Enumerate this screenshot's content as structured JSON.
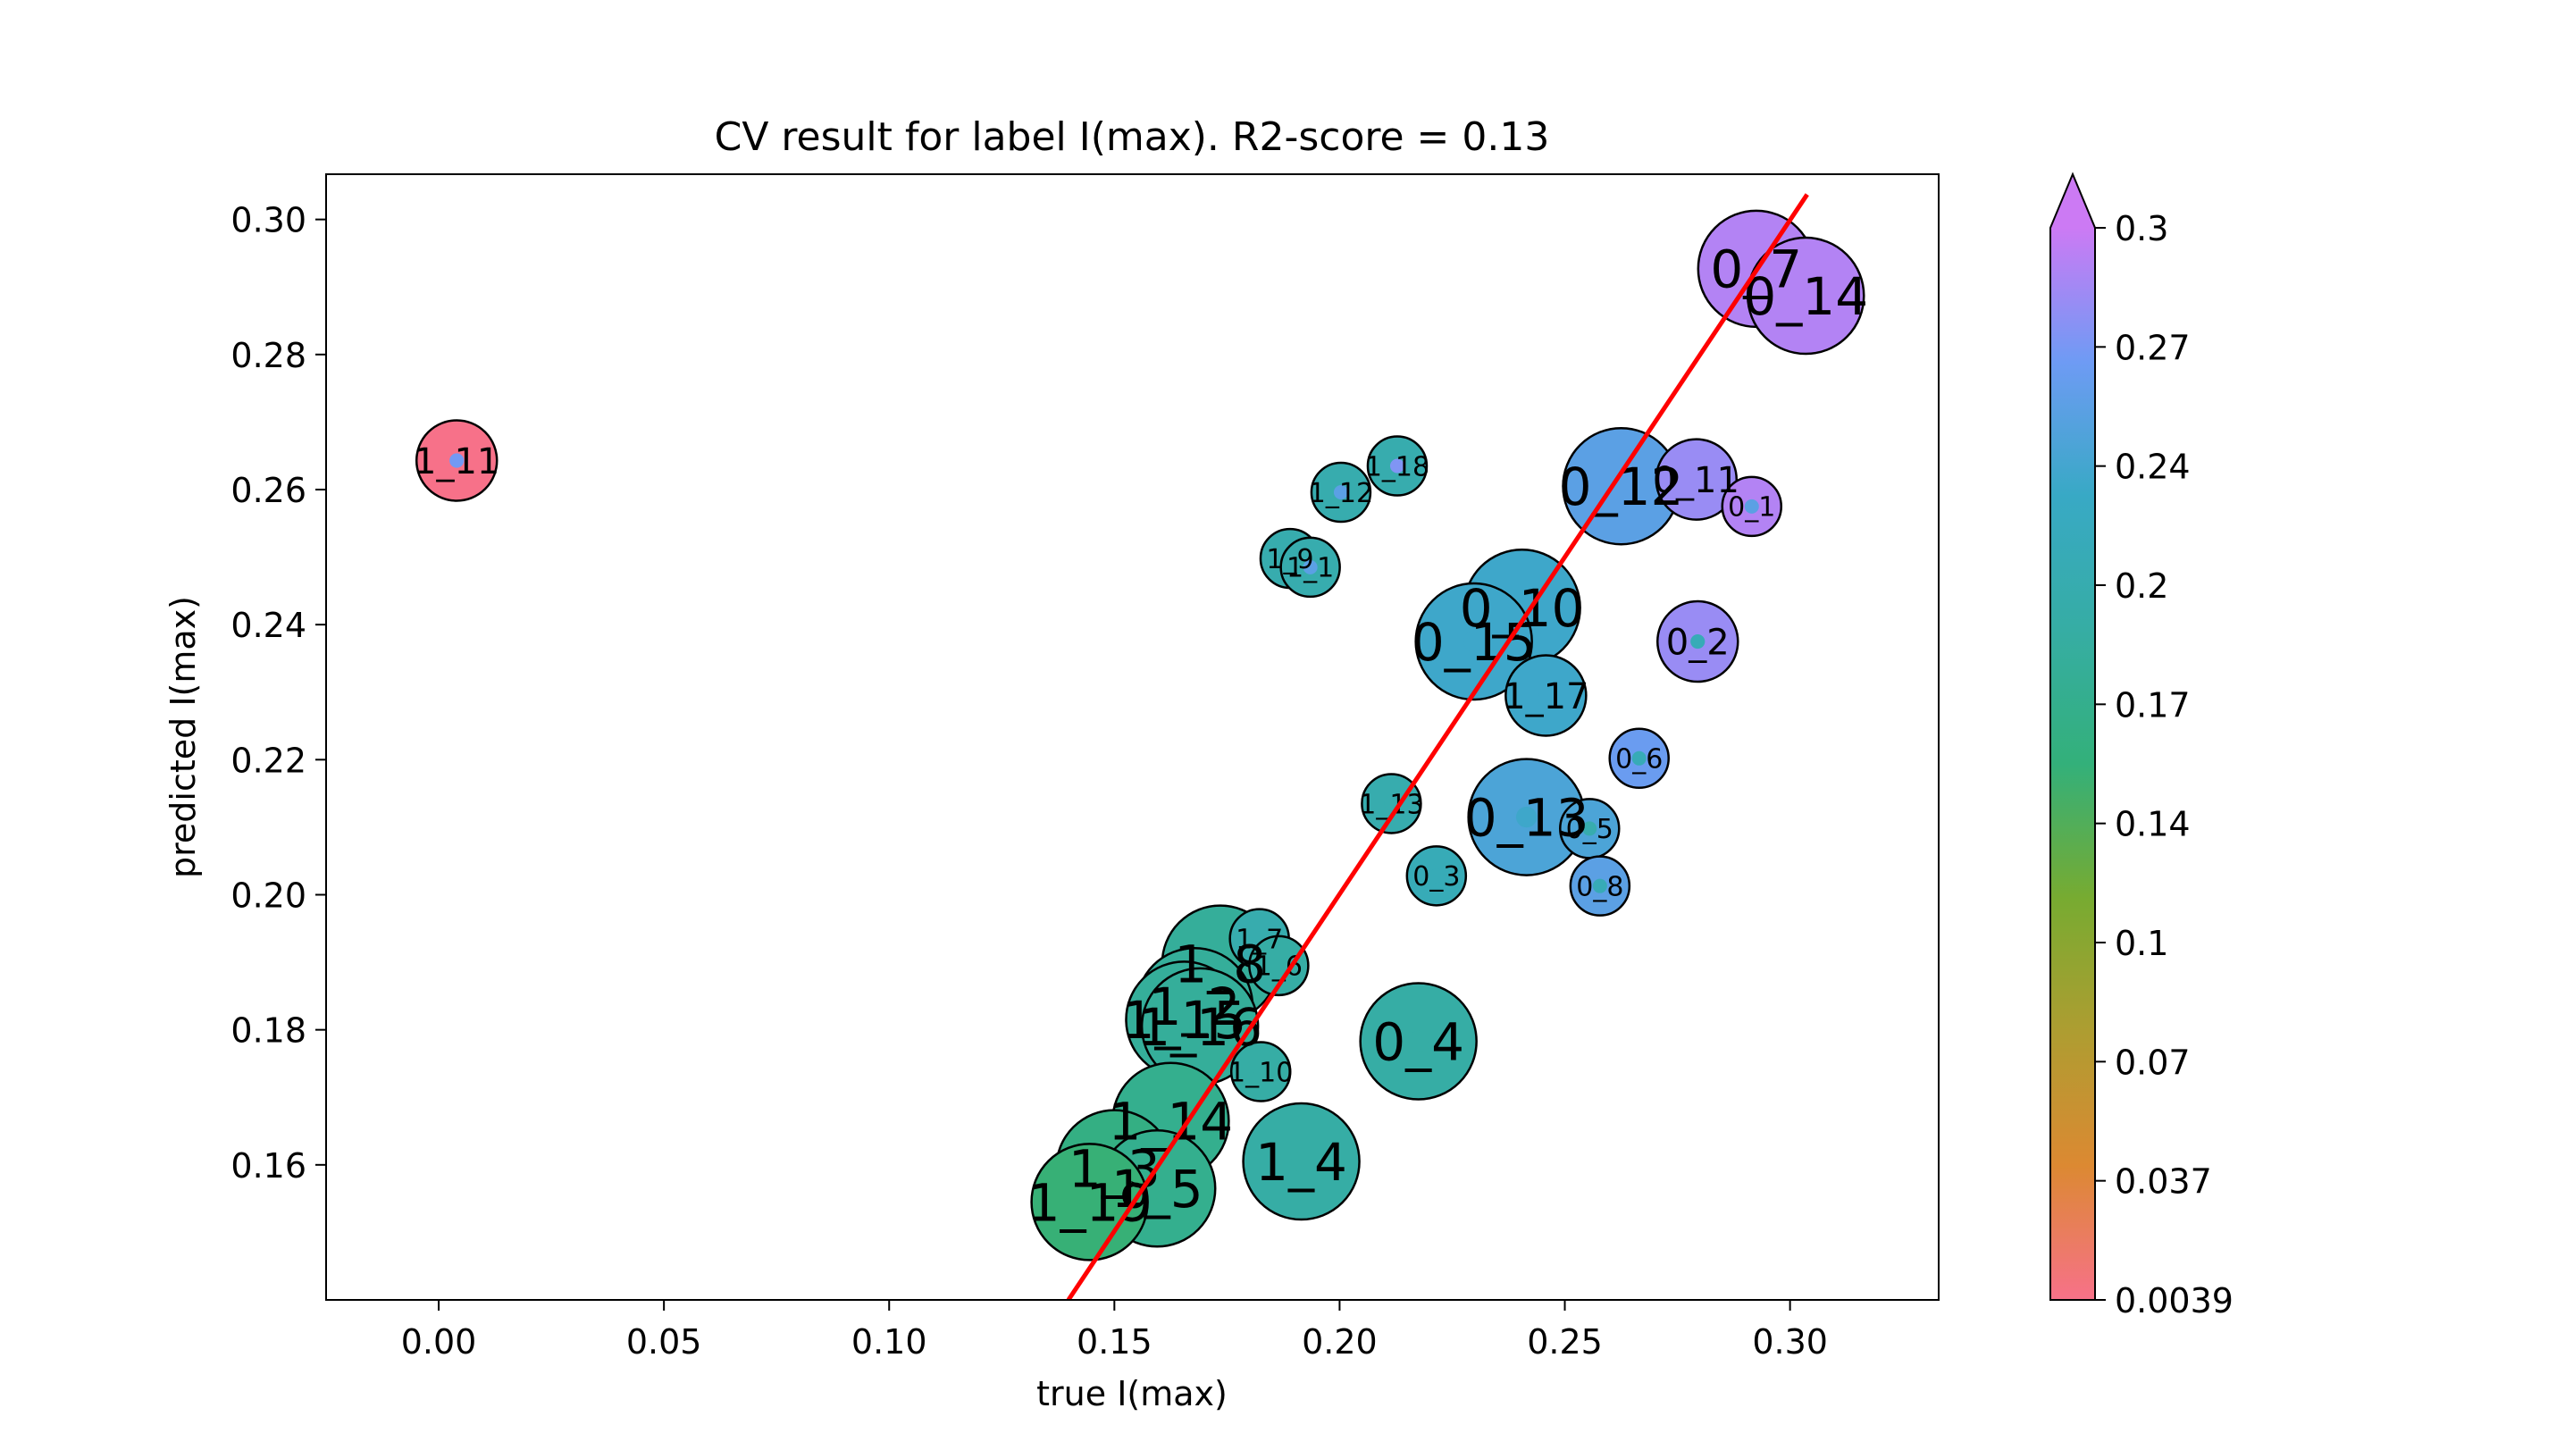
{
  "chart_data": {
    "type": "scatter",
    "title": "CV result for label I(max). R2-score = 0.13",
    "xlabel": "true I(max)",
    "ylabel": "predicted I(max)",
    "xlim": [
      -0.025,
      0.333
    ],
    "ylim": [
      0.14,
      0.3067
    ],
    "xticks": [
      "0.00",
      "0.05",
      "0.10",
      "0.15",
      "0.20",
      "0.25",
      "0.30"
    ],
    "yticks": [
      "0.16",
      "0.18",
      "0.20",
      "0.22",
      "0.24",
      "0.26",
      "0.28",
      "0.30"
    ],
    "grid": false,
    "colorbar": {
      "ticks": [
        "0.0039",
        "0.037",
        "0.07",
        "0.1",
        "0.14",
        "0.17",
        "0.2",
        "0.24",
        "0.27",
        "0.3"
      ],
      "range": [
        0.0039,
        0.3
      ],
      "extend": "max",
      "stops": [
        "#f77189",
        "#dc8932",
        "#ae9d31",
        "#77ab31",
        "#33b07a",
        "#36ada4",
        "#38a9c5",
        "#6e9bf4",
        "#cc7af4"
      ]
    },
    "fit_line": {
      "x": [
        0.1398,
        0.3038
      ],
      "y": [
        0.14,
        0.3037
      ],
      "color": "#ff0000"
    },
    "points": [
      {
        "label": "1_11",
        "x": 0.004,
        "y": 0.2643,
        "c": 0.0039,
        "size": "m",
        "inner": 0.265
      },
      {
        "label": "0_7",
        "x": 0.2925,
        "y": 0.2927,
        "c": 0.29,
        "size": "l",
        "inner": 0.29
      },
      {
        "label": "0_14",
        "x": 0.3035,
        "y": 0.2887,
        "c": 0.29,
        "size": "l",
        "inner": 0.29
      },
      {
        "label": "1_12",
        "x": 0.2003,
        "y": 0.2596,
        "c": 0.2,
        "size": "s",
        "inner": 0.25
      },
      {
        "label": "1_18",
        "x": 0.2128,
        "y": 0.2635,
        "c": 0.2,
        "size": "s",
        "inner": 0.27
      },
      {
        "label": "0_12",
        "x": 0.2625,
        "y": 0.2605,
        "c": 0.25,
        "size": "l",
        "inner": 0.25
      },
      {
        "label": "0_11",
        "x": 0.2792,
        "y": 0.2615,
        "c": 0.28,
        "size": "m",
        "inner": 0.28
      },
      {
        "label": "0_1",
        "x": 0.2915,
        "y": 0.2575,
        "c": 0.29,
        "size": "s",
        "inner": 0.25
      },
      {
        "label": "1_9",
        "x": 0.189,
        "y": 0.2498,
        "c": 0.2,
        "size": "s",
        "inner": 0.26
      },
      {
        "label": "1_1",
        "x": 0.1935,
        "y": 0.2485,
        "c": 0.2,
        "size": "s",
        "inner": 0.25
      },
      {
        "label": "0_10",
        "x": 0.2405,
        "y": 0.2425,
        "c": 0.23,
        "size": "l",
        "inner": 0.23
      },
      {
        "label": "0_15",
        "x": 0.2298,
        "y": 0.2375,
        "c": 0.23,
        "size": "l",
        "inner": 0.23
      },
      {
        "label": "0_2",
        "x": 0.2795,
        "y": 0.2375,
        "c": 0.28,
        "size": "m",
        "inner": 0.21
      },
      {
        "label": "1_17",
        "x": 0.2458,
        "y": 0.2295,
        "c": 0.23,
        "size": "m",
        "inner": 0.23
      },
      {
        "label": "0_6",
        "x": 0.2665,
        "y": 0.2202,
        "c": 0.26,
        "size": "s",
        "inner": 0.21
      },
      {
        "label": "1_13",
        "x": 0.2115,
        "y": 0.2135,
        "c": 0.2,
        "size": "s",
        "inner": 0.2
      },
      {
        "label": "0_13",
        "x": 0.2415,
        "y": 0.2115,
        "c": 0.24,
        "size": "l",
        "inner": 0.23
      },
      {
        "label": "0_5",
        "x": 0.2555,
        "y": 0.2098,
        "c": 0.24,
        "size": "s",
        "inner": 0.2
      },
      {
        "label": "0_3",
        "x": 0.2215,
        "y": 0.2028,
        "c": 0.21,
        "size": "s",
        "inner": 0.21
      },
      {
        "label": "0_8",
        "x": 0.2578,
        "y": 0.2013,
        "c": 0.25,
        "size": "s",
        "inner": 0.21
      },
      {
        "label": "1_7",
        "x": 0.1822,
        "y": 0.1935,
        "c": 0.2,
        "size": "s",
        "inner": 0.2
      },
      {
        "label": "1_8",
        "x": 0.1735,
        "y": 0.1898,
        "c": 0.18,
        "size": "l",
        "inner": 0.18
      },
      {
        "label": "1_6",
        "x": 0.1865,
        "y": 0.1895,
        "c": 0.19,
        "size": "s",
        "inner": 0.19
      },
      {
        "label": "1_2",
        "x": 0.1678,
        "y": 0.1835,
        "c": 0.18,
        "size": "l",
        "inner": 0.18
      },
      {
        "label": "1_15",
        "x": 0.1655,
        "y": 0.1815,
        "c": 0.18,
        "size": "l",
        "inner": 0.18
      },
      {
        "label": "1_16",
        "x": 0.169,
        "y": 0.1805,
        "c": 0.18,
        "size": "l",
        "inner": 0.18
      },
      {
        "label": "0_4",
        "x": 0.2175,
        "y": 0.1783,
        "c": 0.19,
        "size": "l",
        "inner": 0.19
      },
      {
        "label": "1_10",
        "x": 0.1825,
        "y": 0.1738,
        "c": 0.19,
        "size": "s",
        "inner": 0.19
      },
      {
        "label": "1_14",
        "x": 0.1625,
        "y": 0.1665,
        "c": 0.17,
        "size": "l",
        "inner": 0.17
      },
      {
        "label": "1_4",
        "x": 0.1915,
        "y": 0.1605,
        "c": 0.19,
        "size": "l",
        "inner": 0.19
      },
      {
        "label": "1_3",
        "x": 0.15,
        "y": 0.1595,
        "c": 0.16,
        "size": "l",
        "inner": 0.16
      },
      {
        "label": "1_5",
        "x": 0.1595,
        "y": 0.1565,
        "c": 0.17,
        "size": "l",
        "inner": 0.17
      },
      {
        "label": "1_19",
        "x": 0.1445,
        "y": 0.1545,
        "c": 0.15,
        "size": "l",
        "inner": 0.15
      }
    ]
  }
}
